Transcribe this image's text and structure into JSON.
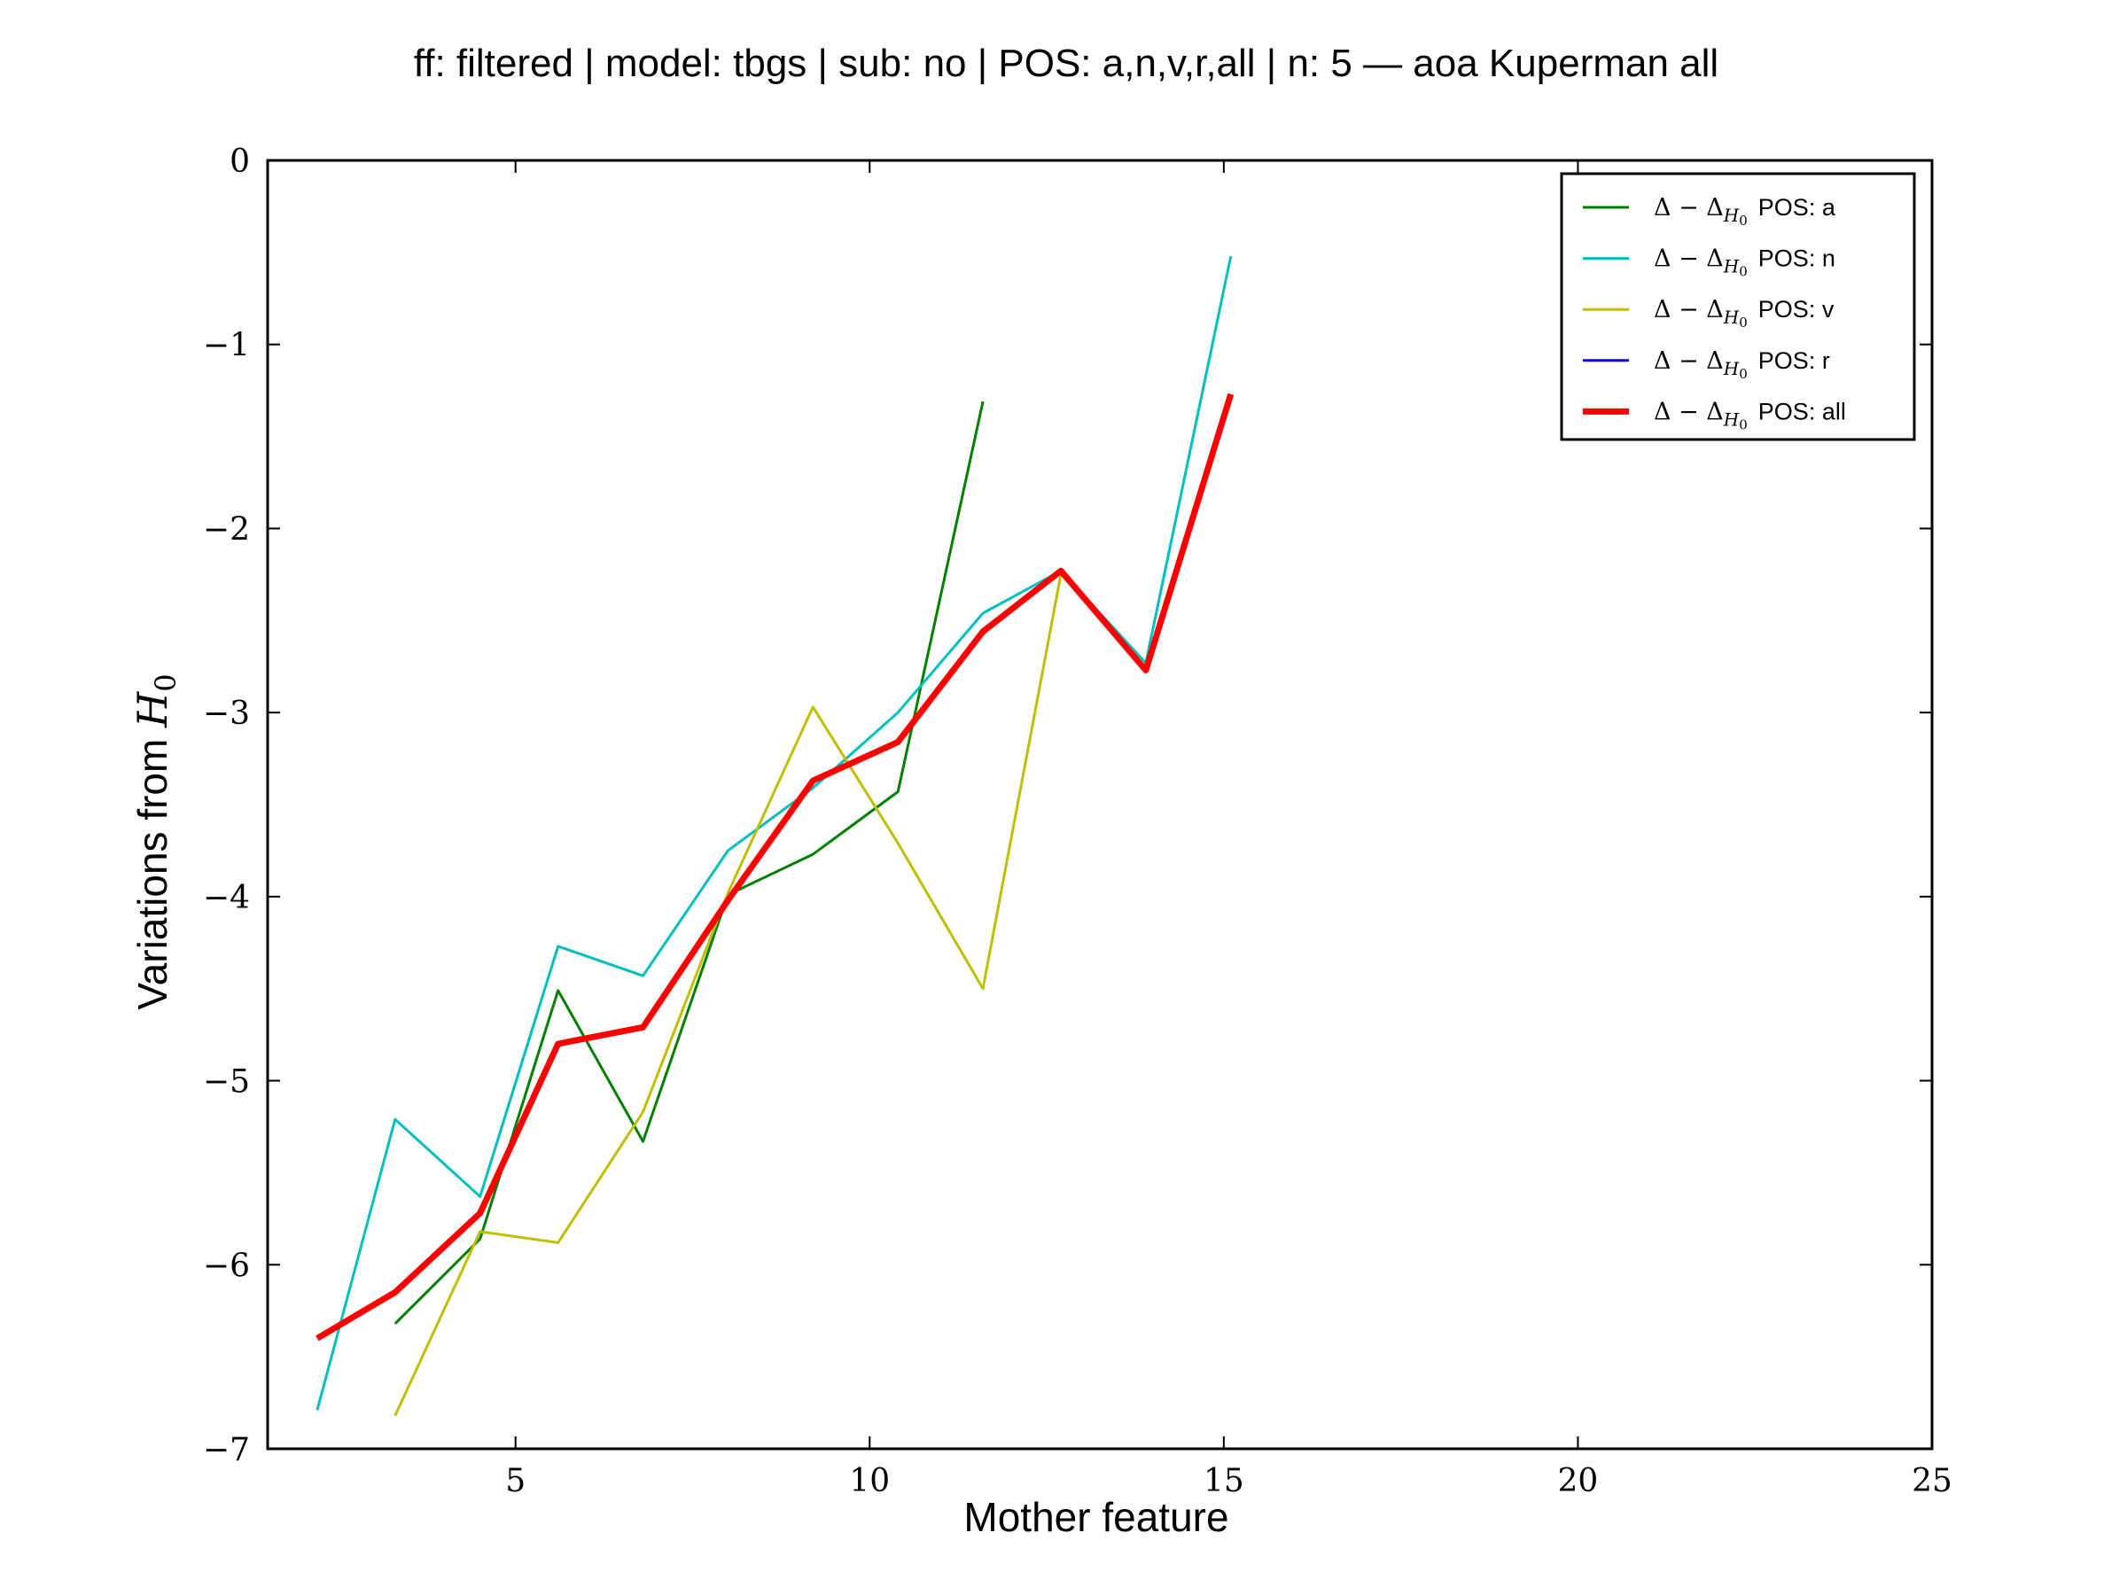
{
  "chart_data": {
    "type": "line",
    "title": "ff: filtered | model: tbgs | sub: no | POS: a,n,v,r,all | n: 5 — aoa Kuperman all",
    "xlabel": "Mother feature",
    "ylabel_prefix": "Variations from ",
    "ylabel_symbol": "H",
    "ylabel_subscript": "0",
    "xlim": [
      1.5,
      25
    ],
    "ylim": [
      -7,
      0
    ],
    "x_ticks": [
      5,
      10,
      15,
      20,
      25
    ],
    "y_ticks": [
      0,
      -1,
      -2,
      -3,
      -4,
      -5,
      -6,
      -7
    ],
    "x_tick_labels": [
      "5",
      "10",
      "15",
      "20",
      "25"
    ],
    "y_tick_labels": [
      "0",
      "−1",
      "−2",
      "−3",
      "−4",
      "−5",
      "−6",
      "−7"
    ],
    "grid": false,
    "legend_position": "top-right",
    "legend_math": "Δ − Δ",
    "legend_math_sub": "H",
    "legend_math_subsub": "0",
    "series": [
      {
        "name": "POS: a",
        "color": "#008000",
        "width": "normal",
        "x": [
          3.3,
          4.5,
          5.6,
          6.8,
          8.0,
          9.2,
          10.4,
          11.6
        ],
        "y": [
          -6.32,
          -5.86,
          -4.51,
          -5.33,
          -3.99,
          -3.77,
          -3.43,
          -1.31
        ]
      },
      {
        "name": "POS: n",
        "color": "#00bfbf",
        "width": "normal",
        "x": [
          2.2,
          3.3,
          4.5,
          5.6,
          6.8,
          8.0,
          9.2,
          10.4,
          11.6,
          12.7,
          13.9,
          15.1
        ],
        "y": [
          -6.79,
          -5.21,
          -5.63,
          -4.27,
          -4.43,
          -3.75,
          -3.41,
          -3.0,
          -2.46,
          -2.23,
          -2.73,
          -0.52
        ]
      },
      {
        "name": "POS: v",
        "color": "#bfbf00",
        "width": "normal",
        "x": [
          3.3,
          4.5,
          5.6,
          6.8,
          8.0,
          9.2,
          10.4,
          11.6,
          12.7
        ],
        "y": [
          -6.82,
          -5.82,
          -5.88,
          -5.17,
          -3.98,
          -2.97,
          -3.71,
          -4.5,
          -2.25
        ]
      },
      {
        "name": "POS: r",
        "color": "#0000ff",
        "width": "normal",
        "x": [],
        "y": []
      },
      {
        "name": "POS: all",
        "color": "#ff0000",
        "width": "thick",
        "x": [
          2.2,
          3.3,
          4.5,
          5.6,
          6.8,
          8.0,
          9.2,
          10.4,
          11.6,
          12.7,
          13.9,
          15.1
        ],
        "y": [
          -6.4,
          -6.15,
          -5.72,
          -4.8,
          -4.71,
          -4.02,
          -3.37,
          -3.16,
          -2.56,
          -2.23,
          -2.77,
          -1.27
        ]
      }
    ]
  }
}
